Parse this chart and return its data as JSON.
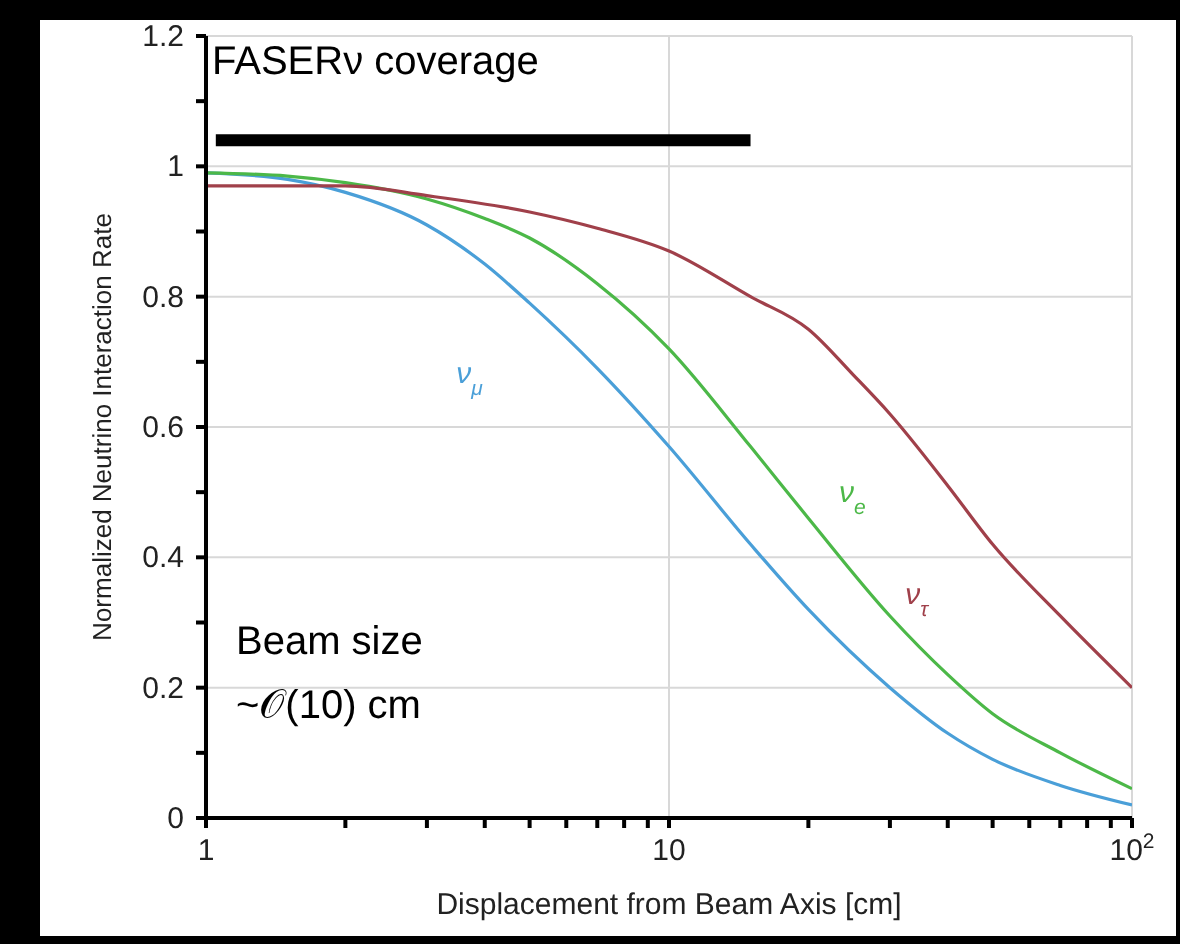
{
  "chart_data": {
    "type": "line",
    "xlabel": "Displacement from Beam Axis [cm]",
    "ylabel": "Normalized Neutrino Interaction Rate",
    "log": "x",
    "xlim": [
      1,
      100
    ],
    "ylim": [
      0,
      1.2
    ],
    "xticks": [
      1,
      {
        "value": 2,
        "label": null
      },
      {
        "value": 3,
        "label": null
      },
      {
        "value": 4,
        "label": null
      },
      {
        "value": 5,
        "label": null
      },
      {
        "value": 6,
        "label": null
      },
      {
        "value": 7,
        "label": null
      },
      {
        "value": 8,
        "label": null
      },
      {
        "value": 9,
        "label": null
      },
      10,
      {
        "value": 20,
        "label": null
      },
      {
        "value": 30,
        "label": null
      },
      {
        "value": 40,
        "label": null
      },
      {
        "value": 50,
        "label": null
      },
      {
        "value": 60,
        "label": null
      },
      {
        "value": 70,
        "label": null
      },
      {
        "value": 80,
        "label": null
      },
      {
        "value": 90,
        "label": null
      },
      {
        "value": 100,
        "label": "10$^{2}$"
      }
    ],
    "yticks": [
      0,
      {
        "value": 0.1,
        "label": null
      },
      0.2,
      {
        "value": 0.3,
        "label": null
      },
      0.4,
      {
        "value": 0.5,
        "label": null
      },
      0.6,
      {
        "value": 0.7,
        "label": null
      },
      0.8,
      {
        "value": 0.9,
        "label": null
      },
      1,
      {
        "value": 1.1,
        "label": null
      },
      1.2
    ],
    "grid": true,
    "marker": "none",
    "line_style": "solid",
    "series": [
      {
        "name": "ν$_{μ}$",
        "color": "#4a9fd8",
        "x": [
          1,
          1.5,
          2,
          3,
          4,
          5,
          7,
          10,
          15,
          20,
          30,
          40,
          50,
          70,
          100
        ],
        "values": [
          0.99,
          0.98,
          0.96,
          0.91,
          0.85,
          0.79,
          0.69,
          0.57,
          0.42,
          0.32,
          0.2,
          0.13,
          0.09,
          0.05,
          0.02
        ]
      },
      {
        "name": "ν$_{e}$",
        "color": "#4cb848",
        "x": [
          1,
          1.5,
          2,
          3,
          4,
          5,
          7,
          10,
          15,
          20,
          30,
          40,
          50,
          70,
          100
        ],
        "values": [
          0.99,
          0.985,
          0.975,
          0.95,
          0.92,
          0.89,
          0.82,
          0.72,
          0.57,
          0.46,
          0.31,
          0.22,
          0.16,
          0.1,
          0.045
        ]
      },
      {
        "name": "ν$_{τ}$",
        "color": "#a0404a",
        "x": [
          1,
          2,
          3,
          5,
          7,
          10,
          15,
          20,
          25,
          30,
          40,
          50,
          70,
          100
        ],
        "values": [
          0.97,
          0.97,
          0.955,
          0.93,
          0.905,
          0.87,
          0.8,
          0.75,
          0.68,
          0.62,
          0.51,
          0.42,
          0.31,
          0.2
        ]
      },
      {
        "color": "#000000",
        "x": [
          1.05,
          15
        ],
        "values": [
          1.04,
          1.04
        ]
      }
    ],
    "annotations": [
      "FASERν coverage",
      "Beam size",
      "~𝒪(10) cm"
    ]
  }
}
